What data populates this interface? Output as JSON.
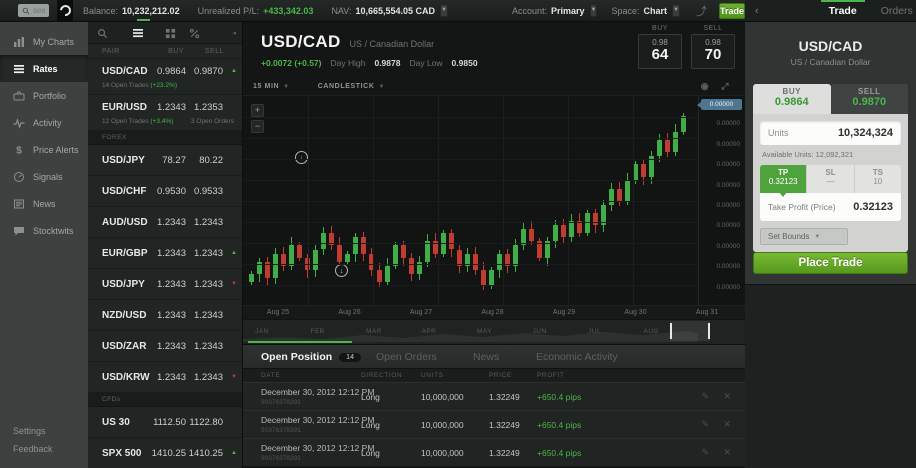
{
  "colors": {
    "accent_green": "#4bb748",
    "candle_up": "#3fae49",
    "candle_down": "#c23b30",
    "buy_price_green": "#36982f",
    "tp_green": "#4fa33c",
    "button_green": "#55991d",
    "price_tag_blue": "#4e7691"
  },
  "topbar": {
    "search_placeholder": "search",
    "balance_label": "Balance:",
    "balance_value": "10,232,212.02",
    "upl_label": "Unrealized P/L:",
    "upl_value": "+433,342.03",
    "nav_label": "NAV:",
    "nav_value": "10,665,554.05 CAD",
    "account_label": "Account:",
    "account_value": "Primary",
    "space_label": "Space:",
    "space_value": "Chart",
    "trade_button": "Trade"
  },
  "sidebar": {
    "items": [
      {
        "label": "My Charts",
        "icon": "charts-icon",
        "active": false
      },
      {
        "label": "Rates",
        "icon": "list-icon",
        "active": true
      },
      {
        "label": "Portfolio",
        "icon": "briefcase-icon",
        "active": false
      },
      {
        "label": "Activity",
        "icon": "activity-icon",
        "active": false
      },
      {
        "label": "Price Alerts",
        "icon": "dollar-icon",
        "active": false
      },
      {
        "label": "Signals",
        "icon": "signal-icon",
        "active": false
      },
      {
        "label": "News",
        "icon": "news-icon",
        "active": false
      },
      {
        "label": "Stocktwits",
        "icon": "chat-icon",
        "active": false
      }
    ],
    "footer": [
      "Settings",
      "Feedback"
    ]
  },
  "rates": {
    "toolbar_icons": [
      "search-icon",
      "list-icon",
      "grid-icon",
      "pulse-icon",
      "collapse-icon"
    ],
    "columns": [
      "PAIR",
      "BUY",
      "SELL"
    ],
    "rows": [
      {
        "pair": "USD/CAD",
        "buy": "0.9864",
        "sell": "0.9870",
        "trend": "up",
        "sub_left": "14 Open Trades",
        "sub_pct": "(+23.2%)",
        "sub_right": ""
      },
      {
        "pair": "EUR/USD",
        "buy": "1.2343",
        "sell": "1.2353",
        "trend": "",
        "sub_left": "12 Open Trades",
        "sub_pct": "(+3.4%)",
        "sub_right": "3 Open Orders"
      },
      {
        "section": "FOREX"
      },
      {
        "pair": "USD/JPY",
        "buy": "78.27",
        "sell": "80.22",
        "trend": ""
      },
      {
        "pair": "USD/CHF",
        "buy": "0.9530",
        "sell": "0.9533",
        "trend": ""
      },
      {
        "pair": "AUD/USD",
        "buy": "1.2343",
        "sell": "1.2343",
        "trend": ""
      },
      {
        "pair": "EUR/GBP",
        "buy": "1.2343",
        "sell": "1.2343",
        "trend": "up"
      },
      {
        "pair": "USD/JPY",
        "buy": "1.2343",
        "sell": "1.2343",
        "trend": "down"
      },
      {
        "pair": "NZD/USD",
        "buy": "1.2343",
        "sell": "1.2343",
        "trend": ""
      },
      {
        "pair": "USD/ZAR",
        "buy": "1.2343",
        "sell": "1.2343",
        "trend": ""
      },
      {
        "pair": "USD/KRW",
        "buy": "1.2343",
        "sell": "1.2343",
        "trend": "down"
      },
      {
        "section": "CFDs"
      },
      {
        "pair": "US 30",
        "buy": "1112.50",
        "sell": "1122.80",
        "trend": ""
      },
      {
        "pair": "SPX 500",
        "buy": "1410.25",
        "sell": "1410.25",
        "trend": "up"
      }
    ]
  },
  "chart": {
    "pair": "USD/CAD",
    "name": "US / Canadian Dollar",
    "change": "+0.0072 (+0.57)",
    "day_high_label": "Day High",
    "day_high": "0.9878",
    "day_low_label": "Day Low",
    "day_low": "0.9850",
    "buy_label": "BUY",
    "buy_small": "0.98",
    "buy_big": "64",
    "sell_label": "SELL",
    "sell_small": "0.98",
    "sell_big": "70",
    "interval": "15 MIN",
    "style": "CANDLESTICK",
    "price_tag": "0.00000",
    "y_labels": [
      "0.00000",
      "0.00000",
      "0.00000",
      "0.00000",
      "0.00000",
      "0.00000",
      "0.00000",
      "0.00000",
      "0.00000",
      "0.00000"
    ],
    "x_labels": [
      "Aug 25",
      "Aug 26",
      "Aug 27",
      "Aug 28",
      "Aug 29",
      "Aug 30",
      "Aug 31"
    ],
    "months": [
      "JAN",
      "FEB",
      "MAR",
      "APR",
      "MAY",
      "JUN",
      "JUL",
      "AUG"
    ]
  },
  "chart_data": {
    "type": "candlestick",
    "pair": "USD/CAD",
    "interval": "15 MIN",
    "scale": "relative-percent",
    "closes": [
      44,
      47,
      43,
      49,
      46,
      51,
      48,
      45,
      50,
      54,
      51,
      47,
      49,
      53,
      49,
      45,
      42,
      46,
      51,
      48,
      44,
      47,
      52,
      49,
      54,
      50,
      46,
      49,
      45,
      41,
      45,
      49,
      46,
      51,
      55,
      52,
      48,
      52,
      56,
      53,
      57,
      54,
      59,
      56,
      61,
      65,
      62,
      67,
      71,
      68,
      73,
      77,
      74,
      79,
      83
    ]
  },
  "positions": {
    "tabs": [
      {
        "label": "Open Position",
        "badge": "14",
        "active": true
      },
      {
        "label": "Open Orders",
        "badge": "",
        "active": false
      },
      {
        "label": "News",
        "badge": "",
        "active": false
      },
      {
        "label": "Economic Activity",
        "badge": "",
        "active": false
      }
    ],
    "columns": [
      "DATE",
      "DIRECTION",
      "UNITS",
      "PRICE",
      "PROFIT"
    ],
    "rows": [
      {
        "date": "December 30, 2012  12:12 PM",
        "id": "90376378391",
        "direction": "Long",
        "units": "10,000,000",
        "price": "1.32249",
        "profit": "+650.4 pips"
      },
      {
        "date": "December 30, 2012  12:12 PM",
        "id": "90376378391",
        "direction": "Long",
        "units": "10,000,000",
        "price": "1.32249",
        "profit": "+650.4 pips"
      },
      {
        "date": "December 30, 2012  12:12 PM",
        "id": "90376378391",
        "direction": "Long",
        "units": "10,000,000",
        "price": "1.32249",
        "profit": "+650.4 pips"
      }
    ]
  },
  "trade_panel": {
    "tab_trade": "Trade",
    "tab_orders": "Orders",
    "pair": "USD/CAD",
    "name": "US / Canadian Dollar",
    "buy_label": "BUY",
    "buy_price": "0.9864",
    "sell_label": "SELL",
    "sell_price": "0.9870",
    "units_label": "Units",
    "units_value": "10,324,324",
    "available_units": "Available Units: 12,092,321",
    "tp_label": "TP",
    "tp_value": "0.32123",
    "sl_label": "SL",
    "sl_value": "—",
    "ts_label": "TS",
    "ts_value": "10",
    "field_label": "Take Profit (Price)",
    "field_value": "0.32123",
    "set_bounds": "Set Bounds",
    "place_trade": "Place Trade"
  }
}
